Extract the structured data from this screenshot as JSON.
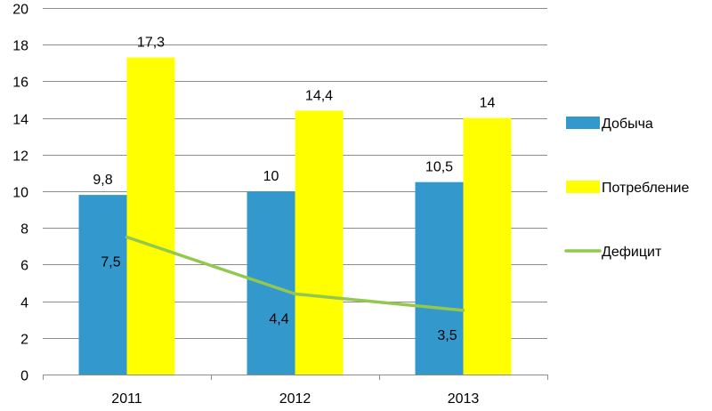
{
  "chart_data": {
    "type": "bar",
    "categories": [
      "2011",
      "2012",
      "2013"
    ],
    "series": [
      {
        "name": "Добыча",
        "kind": "bar",
        "color": "#3399cc",
        "values": [
          9.8,
          10,
          10.5
        ],
        "labels": [
          "9,8",
          "10",
          "10,5"
        ]
      },
      {
        "name": "Потребление",
        "kind": "bar",
        "color": "#ffff00",
        "values": [
          17.3,
          14.4,
          14
        ],
        "labels": [
          "17,3",
          "14,4",
          "14"
        ]
      },
      {
        "name": "Дефицит",
        "kind": "line",
        "color": "#92c84e",
        "values": [
          7.5,
          4.4,
          3.5
        ],
        "labels": [
          "7,5",
          "4,4",
          "3,5"
        ]
      }
    ],
    "ylim": [
      0,
      20
    ],
    "yticks": [
      0,
      2,
      4,
      6,
      8,
      10,
      12,
      14,
      16,
      18,
      20
    ],
    "grid": true,
    "legend": "right"
  }
}
